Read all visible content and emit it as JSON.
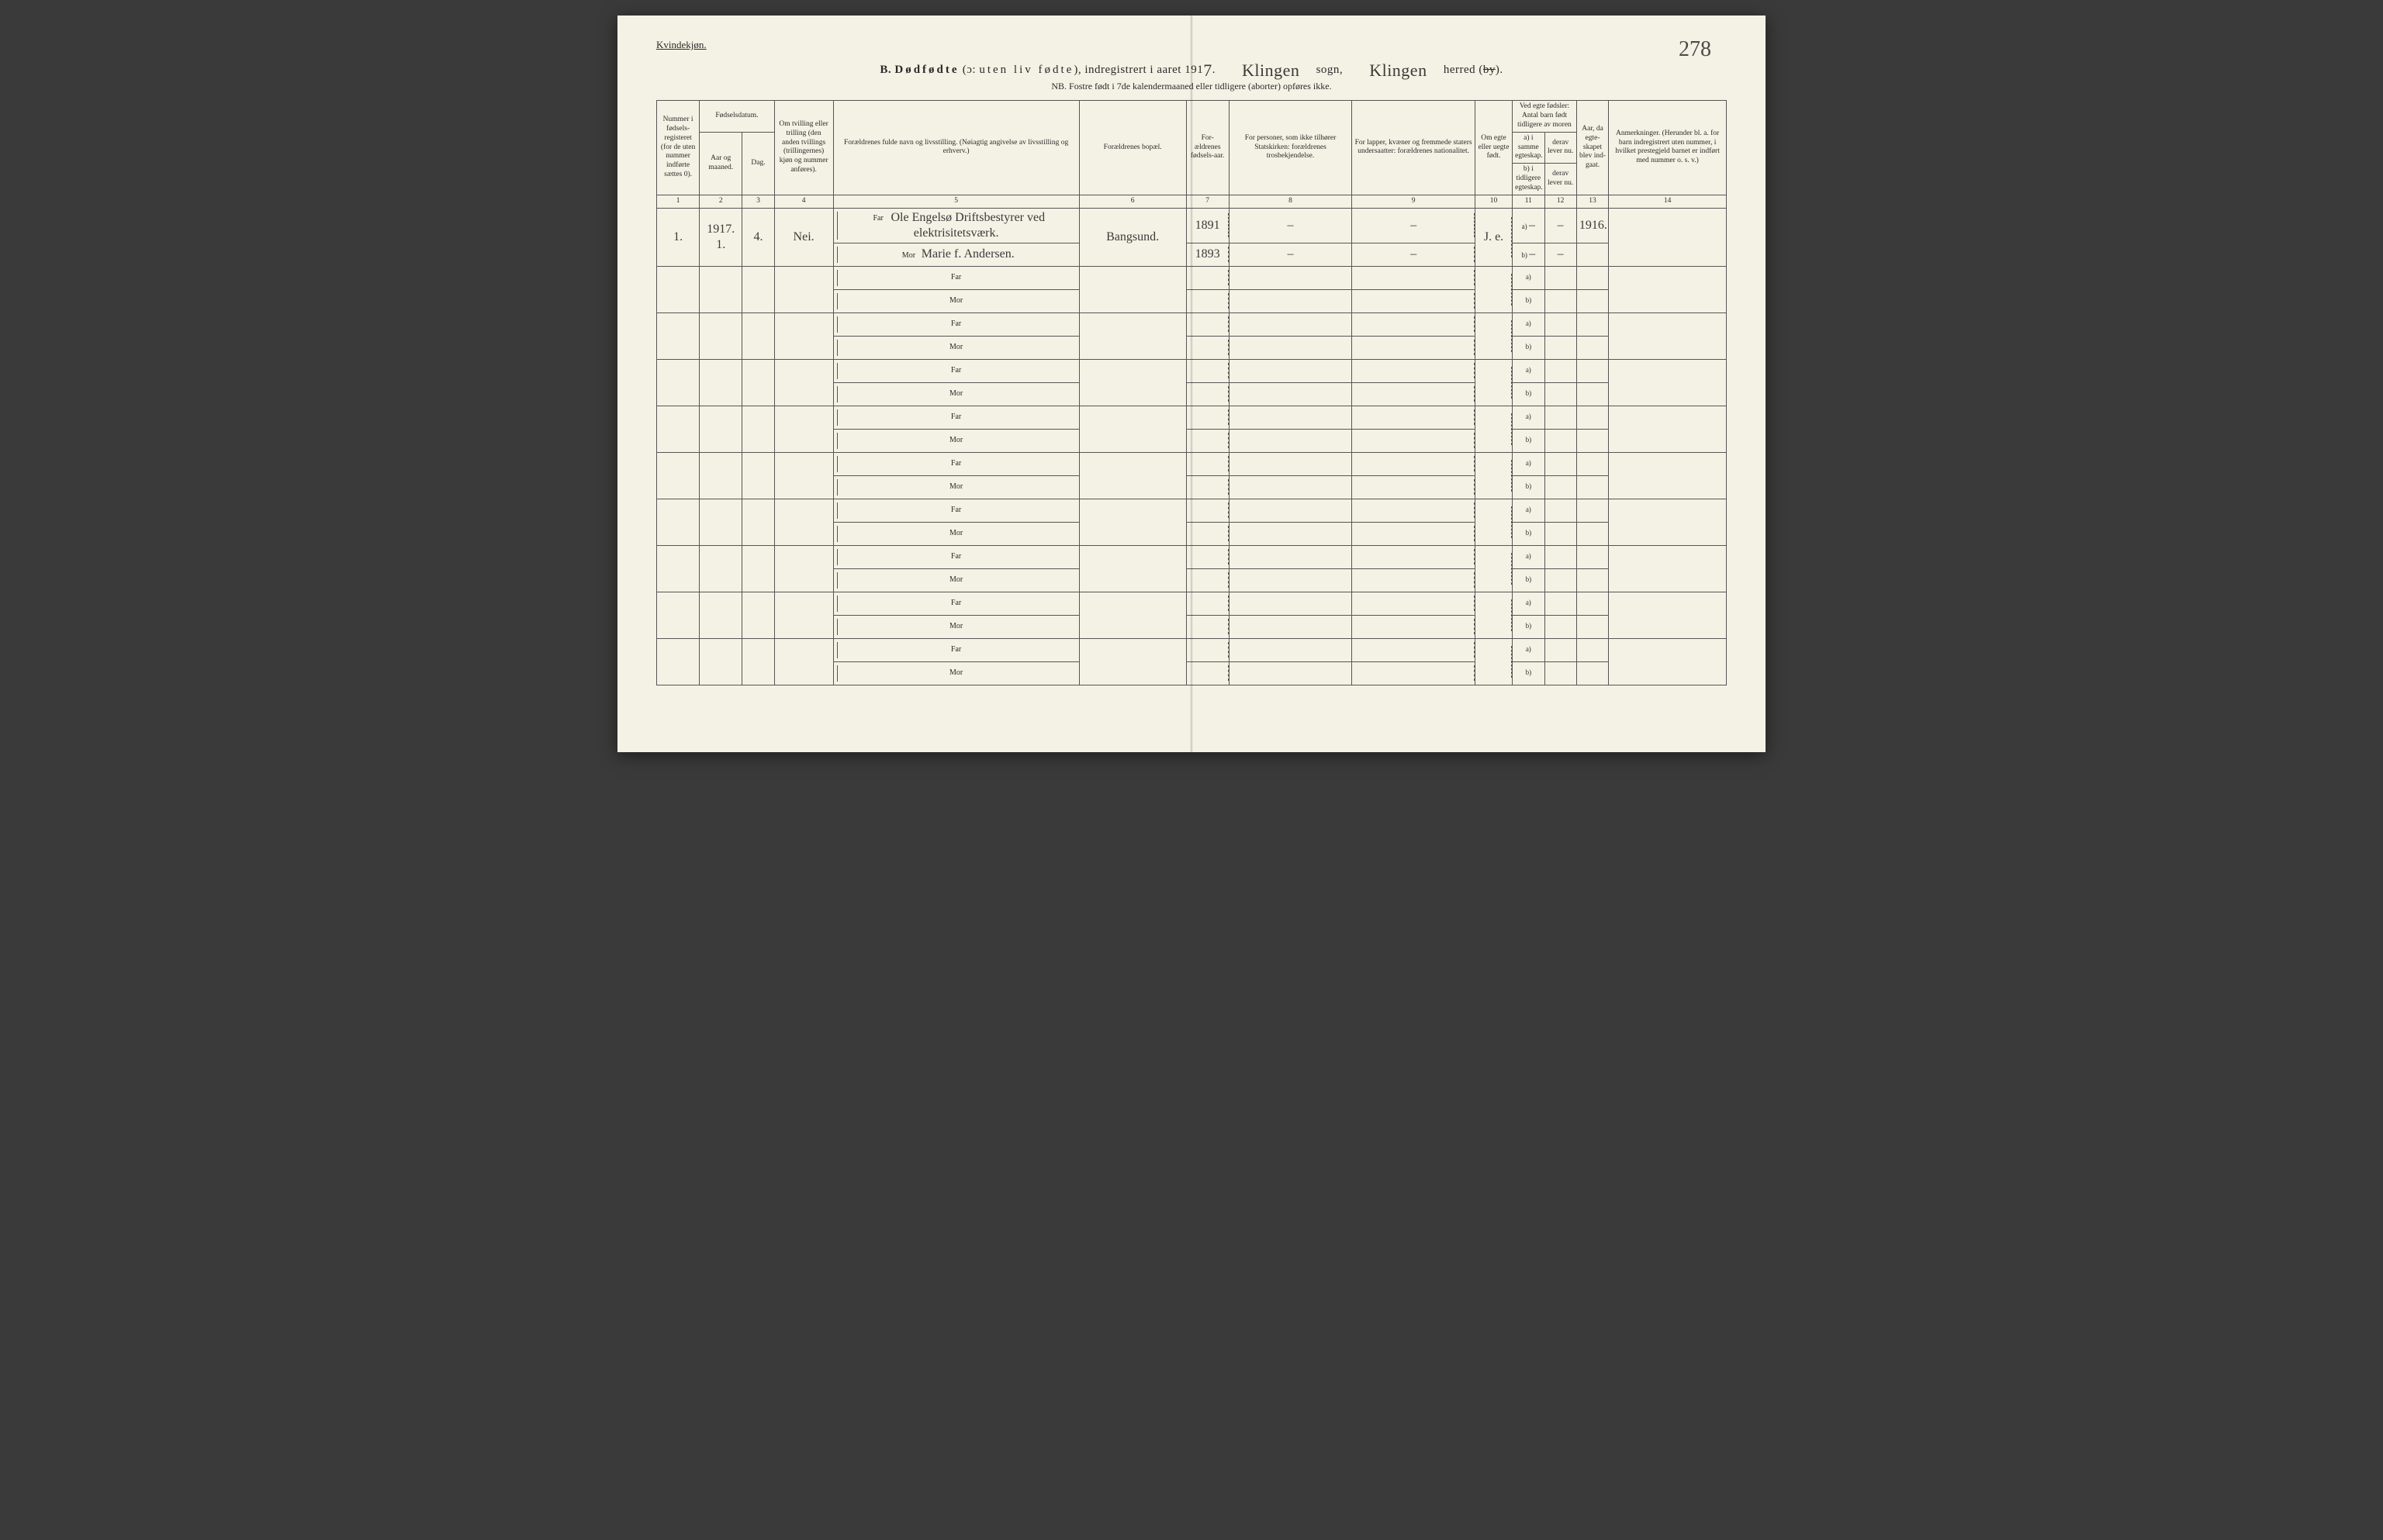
{
  "corner_label": "Kvindekjøn.",
  "page_number_hand": "278",
  "title": {
    "prefix": "B.",
    "main": "Dødfødte (ɔ: uten liv fødte), indregistrert i aaret 191",
    "year_suffix_hand": "7",
    "sogn_hand": "Klingen",
    "sogn_label": "sogn,",
    "herred_hand": "Klingen",
    "herred_label": "herred (",
    "by_struck": "by",
    "herred_close": ")."
  },
  "sub_note": "NB.  Fostre født i 7de kalendermaaned eller tidligere (aborter) opføres ikke.",
  "headers": {
    "c1": "Nummer i fødsels-registeret (for de uten nummer indførte sættes 0).",
    "c2_top": "Fødselsdatum.",
    "c2a": "Aar og maaned.",
    "c2b": "Dag.",
    "c4": "Om tvilling eller trilling (den anden tvillings (trillingernes) kjøn og nummer anføres).",
    "c5": "Forældrenes fulde navn og livsstilling. (Nøiagtig angivelse av livsstilling og erhverv.)",
    "c6": "Forældrenes bopæl.",
    "c7": "For-ældrenes fødsels-aar.",
    "c8": "For personer, som ikke tilhører Statskirken: forældrenes trosbekjendelse.",
    "c9": "For lapper, kvæner og fremmede staters undersaatter: forældrenes nationalitet.",
    "c10": "Om egte eller uegte født.",
    "c11_top": "Ved egte fødsler: Antal barn født tidligere av moren",
    "c11a": "a) i samme egteskap.",
    "c11b": "b) i tidligere egteskap.",
    "c12a": "derav lever nu.",
    "c12b": "derav lever nu.",
    "c13": "Aar, da egte-skapet blev ind-gaat.",
    "c14": "Anmerkninger. (Herunder bl. a. for barn indregistrert uten nummer, i hvilket prestegjeld barnet er indført med nummer o. s. v.)"
  },
  "colnums": [
    "1",
    "2",
    "3",
    "4",
    "5",
    "6",
    "7",
    "8",
    "9",
    "10",
    "11",
    "12",
    "13",
    "14"
  ],
  "labels": {
    "far": "Far",
    "mor": "Mor",
    "ab_a": "a)",
    "ab_b": "b)"
  },
  "entry": {
    "num": "1.",
    "aar": "1917. 1.",
    "dag": "4.",
    "tvilling": "Nei.",
    "far_name": "Ole Engelsø Driftsbestyrer ved elektrisitetsværk.",
    "mor_name": "Marie f. Andersen.",
    "bopael": "Bangsund.",
    "far_aar": "1891",
    "mor_aar": "1893",
    "c8": "–",
    "c9": "–",
    "egte": "J. e.",
    "c11a": "–",
    "c12a": "–",
    "c13": "1916.",
    "c11b": "–",
    "c12b": "–"
  },
  "blank_rows": 9,
  "colors": {
    "paper": "#f4f2e4",
    "ink": "#2a2a2a",
    "rule": "#555555",
    "hand": "#3a3a3a"
  },
  "col_widths_pct": [
    4.0,
    4.0,
    3.0,
    5.5,
    23.0,
    10.0,
    4.0,
    11.5,
    11.5,
    3.5,
    3.0,
    3.0,
    3.0,
    11.0
  ]
}
